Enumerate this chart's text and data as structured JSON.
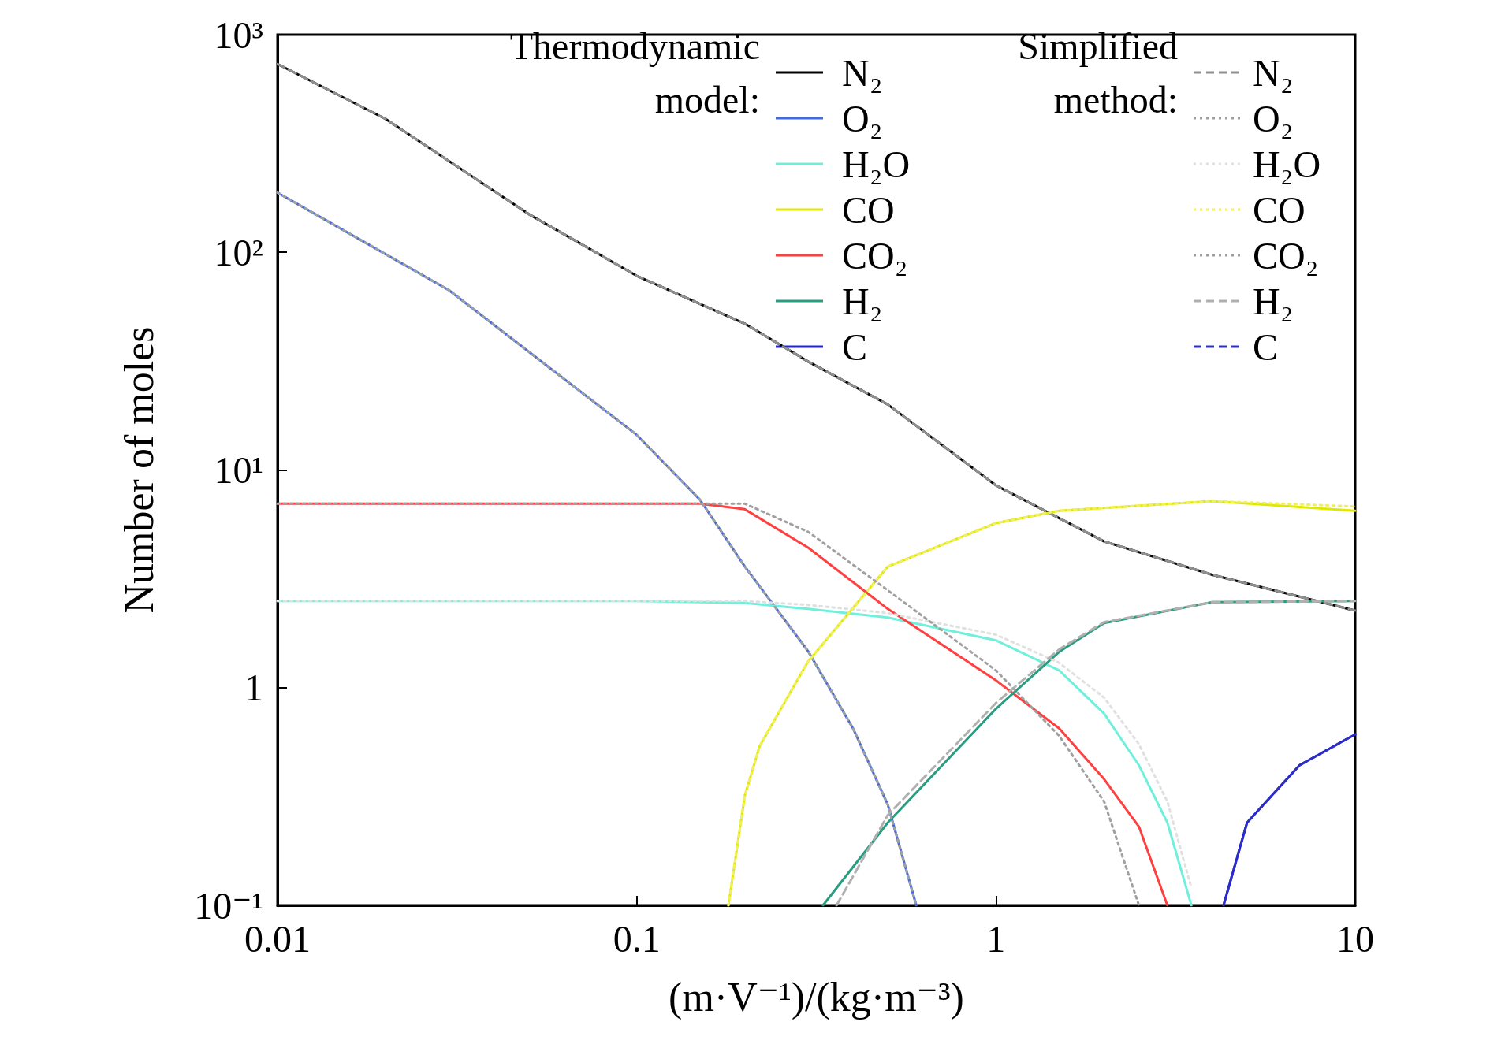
{
  "chart_data": {
    "type": "line",
    "xlabel": "(m·V⁻¹)/(kg·m⁻³)",
    "ylabel": "Number of moles",
    "log": "xy",
    "grid": false,
    "marker": "none",
    "legend": "top right",
    "legend_title": "Thermodynamic model:",
    "annotations": [
      "Simplified method:"
    ],
    "xlim": [
      0.01,
      10
    ],
    "xticks": [
      0.01,
      0.1,
      1,
      10
    ],
    "ylim": [
      0.1,
      1000
    ],
    "yticks": [
      {
        "value": 0.1,
        "label": "10⁻¹"
      },
      1,
      {
        "value": 10,
        "label": "10¹"
      },
      {
        "value": 100,
        "label": "10²"
      },
      {
        "value": 1000,
        "label": "10³"
      }
    ],
    "series": [
      {
        "name": "N₂",
        "color": "#000000",
        "line_style": "solid",
        "x": [
          0.01,
          0.02,
          0.05,
          0.1,
          0.2,
          0.3,
          0.5,
          1,
          2,
          4,
          10
        ],
        "values": [
          733,
          410,
          150,
          78,
          47,
          31.5,
          20,
          8.5,
          4.7,
          3.3,
          2.26
        ]
      },
      {
        "name": "O₂",
        "color": "#4169e1",
        "line_style": "solid",
        "x": [
          0.01,
          0.03,
          0.1,
          0.15,
          0.2,
          0.3,
          0.4,
          0.5,
          0.6
        ],
        "values": [
          188,
          67,
          14.5,
          7.3,
          3.6,
          1.47,
          0.65,
          0.29,
          0.1
        ]
      },
      {
        "name": "H₂O",
        "color": "#70f0dc",
        "line_style": "solid",
        "x": [
          0.01,
          0.1,
          0.2,
          0.3,
          0.5,
          1,
          1.5,
          2,
          2.5,
          3,
          3.5
        ],
        "values": [
          2.5,
          2.5,
          2.45,
          2.3,
          2.1,
          1.65,
          1.2,
          0.76,
          0.44,
          0.24,
          0.1
        ]
      },
      {
        "name": "CO",
        "color": "#e0e800",
        "line_style": "solid",
        "x": [
          0.18,
          0.2,
          0.22,
          0.3,
          0.5,
          1,
          1.5,
          4,
          10
        ],
        "values": [
          0.1,
          0.32,
          0.54,
          1.32,
          3.6,
          5.7,
          6.5,
          7.2,
          6.5
        ]
      },
      {
        "name": "CO₂",
        "color": "#ff4040",
        "line_style": "solid",
        "x": [
          0.01,
          0.15,
          0.2,
          0.3,
          0.5,
          1,
          1.5,
          2,
          2.5,
          3
        ],
        "values": [
          7,
          7,
          6.6,
          4.4,
          2.3,
          1.08,
          0.65,
          0.38,
          0.23,
          0.1
        ]
      },
      {
        "name": "H₂",
        "color": "#2a9d80",
        "line_style": "solid",
        "x": [
          0.33,
          0.5,
          1,
          1.5,
          2,
          4,
          10
        ],
        "values": [
          0.1,
          0.24,
          0.8,
          1.46,
          1.98,
          2.47,
          2.5
        ]
      },
      {
        "name": "C",
        "color": "#2222e0",
        "line_style": "solid",
        "x": [
          4.3,
          5,
          7,
          10
        ],
        "values": [
          0.1,
          0.24,
          0.44,
          0.61
        ]
      },
      {
        "name": "N₂",
        "color": "#909090",
        "line_style": "dashed",
        "x": [
          0.01,
          0.02,
          0.05,
          0.1,
          0.2,
          0.3,
          0.5,
          1,
          2,
          4,
          10
        ],
        "values": [
          733,
          410,
          150,
          78,
          47,
          31.5,
          20,
          8.5,
          4.7,
          3.3,
          2.26
        ]
      },
      {
        "name": "O₂",
        "color": "#a0a0a0",
        "line_style": "dotted",
        "x": [
          0.01,
          0.03,
          0.1,
          0.15,
          0.2,
          0.3,
          0.4,
          0.5,
          0.6
        ],
        "values": [
          188,
          67,
          14.5,
          7.3,
          3.6,
          1.47,
          0.65,
          0.29,
          0.1
        ]
      },
      {
        "name": "H₂O",
        "color": "#e0e0e0",
        "line_style": "dotted",
        "x": [
          0.01,
          0.1,
          0.2,
          0.3,
          0.5,
          1,
          1.5,
          2,
          2.5,
          3,
          3.5
        ],
        "values": [
          2.5,
          2.5,
          2.5,
          2.4,
          2.2,
          1.75,
          1.3,
          0.9,
          0.55,
          0.3,
          0.12
        ]
      },
      {
        "name": "CO",
        "color": "#f0f060",
        "line_style": "dotted",
        "x": [
          0.18,
          0.2,
          0.22,
          0.3,
          0.5,
          1,
          1.5,
          4,
          10
        ],
        "values": [
          0.1,
          0.32,
          0.54,
          1.32,
          3.6,
          5.7,
          6.5,
          7.2,
          6.8
        ]
      },
      {
        "name": "CO₂",
        "color": "#a0a0a0",
        "line_style": "dotted",
        "x": [
          0.01,
          0.15,
          0.2,
          0.3,
          0.5,
          1,
          1.5,
          2,
          2.5
        ],
        "values": [
          7,
          7,
          7,
          5.2,
          2.8,
          1.2,
          0.6,
          0.3,
          0.1
        ]
      },
      {
        "name": "H₂",
        "color": "#b0b0b0",
        "line_style": "dashed",
        "x": [
          0.36,
          0.5,
          1,
          1.5,
          2,
          4,
          10
        ],
        "values": [
          0.1,
          0.26,
          0.85,
          1.5,
          2,
          2.47,
          2.5
        ]
      },
      {
        "name": "C",
        "color": "#3030c0",
        "line_style": "dashed",
        "x": [
          4.3,
          5,
          7,
          10
        ],
        "values": [
          0.1,
          0.24,
          0.44,
          0.61
        ]
      }
    ]
  }
}
